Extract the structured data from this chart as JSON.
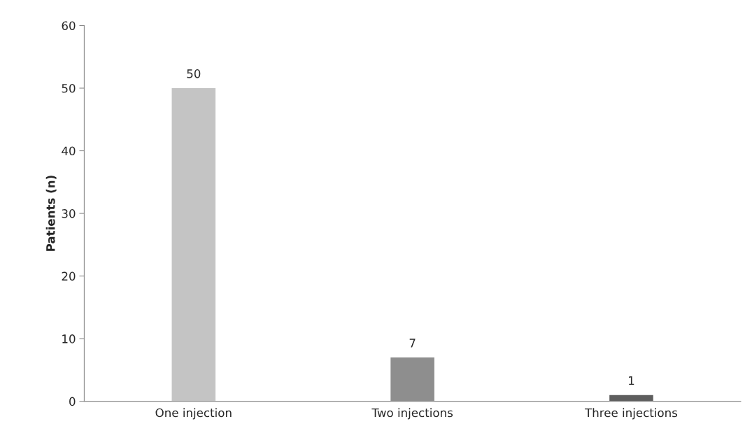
{
  "chart_data": {
    "type": "bar",
    "ylabel": "Patients (n)",
    "categories": [
      "One injection",
      "Two injections",
      "Three injections"
    ],
    "values": [
      50,
      7,
      1
    ],
    "colors": [
      "#c4c4c4",
      "#8e8e8e",
      "#5e5e5e"
    ],
    "ylim": [
      0,
      60
    ],
    "yticks": [
      0,
      10,
      20,
      30,
      40,
      50,
      60
    ],
    "data_labels": true,
    "grid": false,
    "legend": false
  }
}
